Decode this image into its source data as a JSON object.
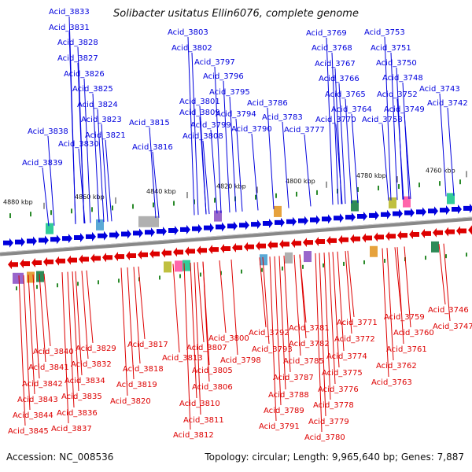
{
  "title": "Solibacter usitatus Ellin6076, complete genome",
  "footer": {
    "accession": "Accession: NC_008536",
    "summary": "Topology: circular; Length: 9,965,640 bp; Genes: 7,887"
  },
  "colors": {
    "forward": "#0000dd",
    "reverse": "#dd0000",
    "backbone": "#888888"
  },
  "scale_ticks": [
    "4880 kbp",
    "4860 kbp",
    "4840 kbp",
    "4820 kbp",
    "4800 kbp",
    "4780 kbp",
    "4760 kbp"
  ],
  "forward_genes": [
    "Acid_3833",
    "Acid_3831",
    "Acid_3828",
    "Acid_3827",
    "Acid_3826",
    "Acid_3825",
    "Acid_3824",
    "Acid_3823",
    "Acid_3821",
    "Acid_3838",
    "Acid_3830",
    "Acid_3839",
    "Acid_3816",
    "Acid_3815",
    "Acid_3803",
    "Acid_3802",
    "Acid_3797",
    "Acid_3796",
    "Acid_3795",
    "Acid_3801",
    "Acid_3809",
    "Acid_3799",
    "Acid_3808",
    "Acid_3794",
    "Acid_3790",
    "Acid_3786",
    "Acid_3783",
    "Acid_3777",
    "Acid_3769",
    "Acid_3768",
    "Acid_3767",
    "Acid_3766",
    "Acid_3765",
    "Acid_3764",
    "Acid_3770",
    "Acid_3753",
    "Acid_3751",
    "Acid_3750",
    "Acid_3748",
    "Acid_3752",
    "Acid_3749",
    "Acid_3758",
    "Acid_3743",
    "Acid_3742"
  ],
  "reverse_genes": [
    "Acid_3840",
    "Acid_3841",
    "Acid_3842",
    "Acid_3843",
    "Acid_3844",
    "Acid_3845",
    "Acid_3829",
    "Acid_3832",
    "Acid_3834",
    "Acid_3835",
    "Acid_3836",
    "Acid_3837",
    "Acid_3817",
    "Acid_3818",
    "Acid_3819",
    "Acid_3820",
    "Acid_3800",
    "Acid_3807",
    "Acid_3813",
    "Acid_3798",
    "Acid_3805",
    "Acid_3806",
    "Acid_3810",
    "Acid_3811",
    "Acid_3812",
    "Acid_3792",
    "Acid_3793",
    "Acid_3781",
    "Acid_3782",
    "Acid_3785",
    "Acid_3787",
    "Acid_3788",
    "Acid_3789",
    "Acid_3791",
    "Acid_3771",
    "Acid_3772",
    "Acid_3774",
    "Acid_3775",
    "Acid_3776",
    "Acid_3778",
    "Acid_3779",
    "Acid_3780",
    "Acid_3759",
    "Acid_3760",
    "Acid_3761",
    "Acid_3762",
    "Acid_3763",
    "Acid_3746",
    "Acid_3747"
  ]
}
